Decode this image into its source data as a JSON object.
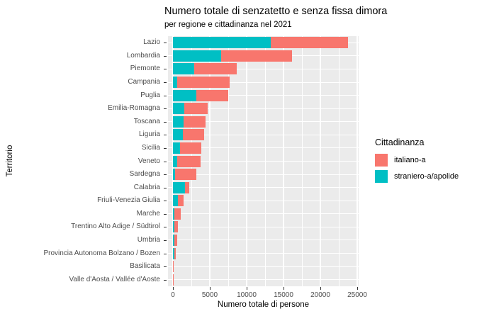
{
  "title": "Numero totale di senzatetto e senza fissa dimora",
  "subtitle": "per regione e cittadinanza nel 2021",
  "colors": {
    "italiano": "#F8766D",
    "straniero": "#00BFC4",
    "panel_background": "#EBEBEB",
    "gridline": "#FFFFFF",
    "axis_text": "#4D4D4D",
    "tick_mark": "#333333"
  },
  "legend": {
    "title": "Cittadinanza",
    "items": [
      {
        "label": "italiano-a",
        "color": "#F8766D"
      },
      {
        "label": "straniero-a/apolide",
        "color": "#00BFC4"
      }
    ]
  },
  "chart_data": {
    "type": "bar",
    "orientation": "horizontal",
    "stacked": true,
    "title": "Numero totale di senzatetto e senza fissa dimora",
    "subtitle": "per regione e cittadinanza nel 2021",
    "xlabel": "Numero totale di persone",
    "ylabel": "Territorio",
    "xlim": [
      0,
      25000
    ],
    "x_ticks": [
      0,
      5000,
      10000,
      15000,
      20000,
      25000
    ],
    "grid": true,
    "legend_title": "Cittadinanza",
    "legend_position": "right",
    "categories": [
      "Lazio",
      "Lombardia",
      "Piemonte",
      "Campania",
      "Puglia",
      "Emilia-Romagna",
      "Toscana",
      "Liguria",
      "Sicilia",
      "Veneto",
      "Sardegna",
      "Calabria",
      "Friuli-Venezia Giulia",
      "Marche",
      "Trentino Alto Adige / Südtirol",
      "Umbria",
      "Provincia Autonoma Bolzano / Bozen",
      "Basilicata",
      "Valle d'Aosta / Vallée d'Aoste"
    ],
    "series": [
      {
        "name": "straniero-a/apolide",
        "color": "#00BFC4",
        "values": [
          13250,
          6550,
          2900,
          600,
          3150,
          1550,
          1400,
          1300,
          930,
          600,
          300,
          1650,
          700,
          150,
          200,
          150,
          200,
          0,
          0
        ]
      },
      {
        "name": "italiano-a",
        "color": "#F8766D",
        "values": [
          10500,
          9600,
          5750,
          7100,
          4350,
          3200,
          3000,
          2900,
          2950,
          3150,
          2850,
          600,
          750,
          950,
          450,
          430,
          150,
          100,
          90
        ]
      }
    ]
  }
}
